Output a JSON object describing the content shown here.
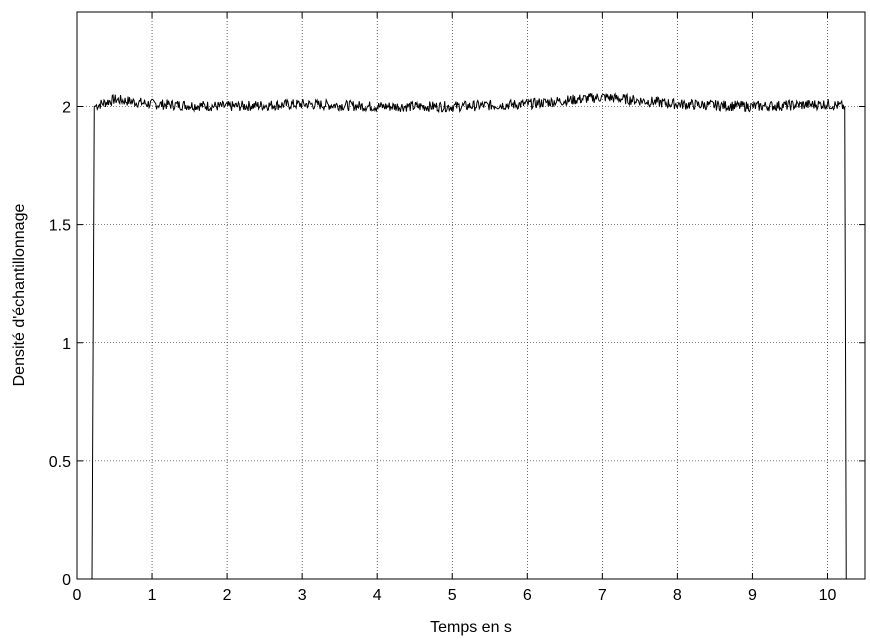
{
  "chart_data": {
    "type": "line",
    "title": "",
    "xlabel": "Temps en s",
    "ylabel": "Densité d'échantillonnage",
    "xlim": [
      0,
      10.5
    ],
    "ylim": [
      0,
      2.4
    ],
    "x_ticks": [
      0,
      1,
      2,
      3,
      4,
      5,
      6,
      7,
      8,
      9,
      10
    ],
    "y_ticks": [
      0,
      0.5,
      1,
      1.5,
      2
    ],
    "x_tick_labels": [
      "0",
      "1",
      "2",
      "3",
      "4",
      "5",
      "6",
      "7",
      "8",
      "9",
      "10"
    ],
    "y_tick_labels": [
      "0",
      "0.5",
      "1",
      "1.5",
      "2"
    ],
    "grid": true,
    "series": [
      {
        "color": "#000000",
        "start": 0.2,
        "end": 10.25,
        "level": 2.0,
        "noise_amplitude": 0.025,
        "x": [
          0.2,
          0.22,
          0.5,
          1.0,
          2.0,
          3.0,
          4.0,
          5.0,
          6.0,
          7.0,
          8.0,
          9.0,
          10.0,
          10.23,
          10.25
        ],
        "y": [
          0,
          2.0,
          2.03,
          2.01,
          2.0,
          2.01,
          2.0,
          2.0,
          2.01,
          2.04,
          2.01,
          2.0,
          2.01,
          2.0,
          0
        ]
      }
    ]
  }
}
